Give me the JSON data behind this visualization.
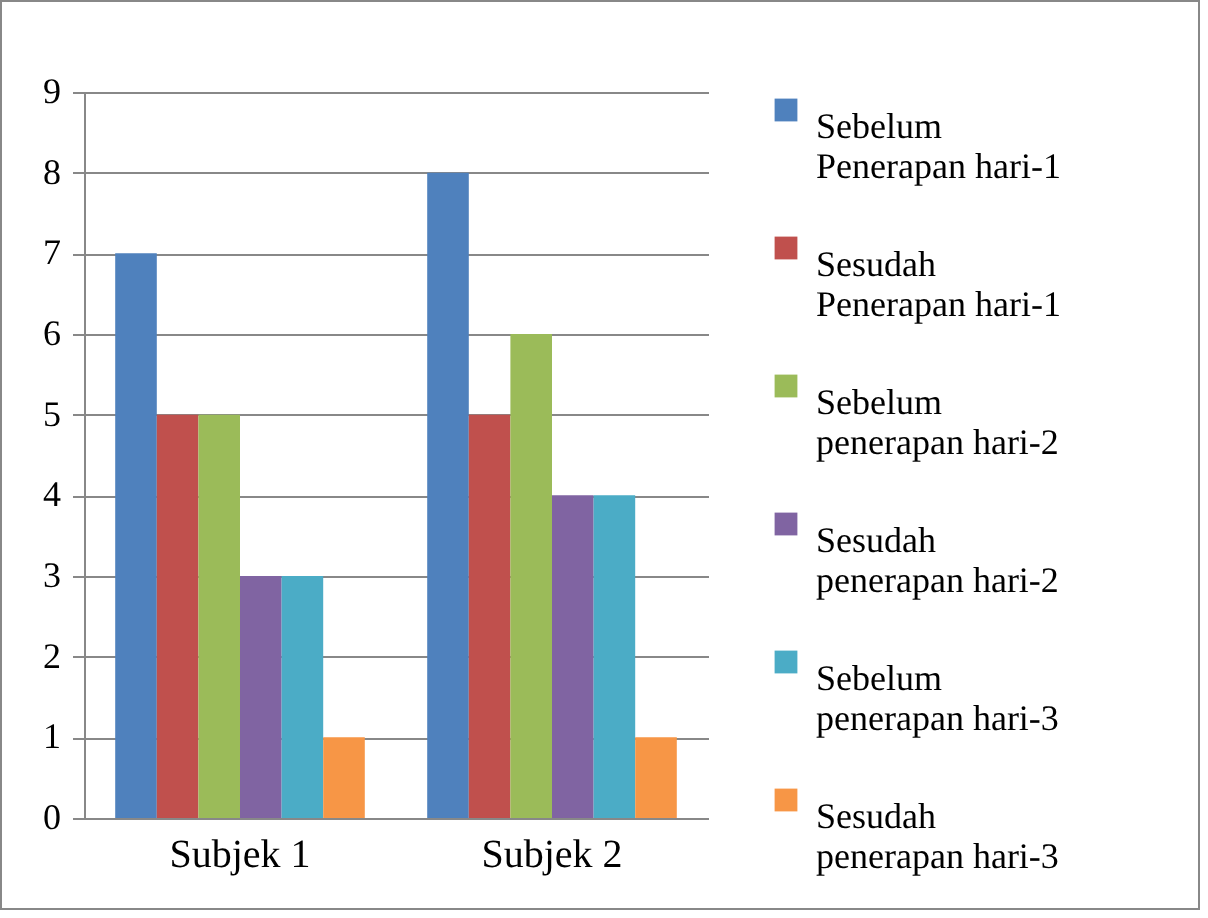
{
  "chart_data": {
    "type": "bar",
    "categories": [
      "Subjek 1",
      "Subjek 2"
    ],
    "series": [
      {
        "name": "Sebelum Penerapan hari-1",
        "color": "#4f81bd",
        "values": [
          7,
          8
        ]
      },
      {
        "name": "Sesudah Penerapan hari-1",
        "color": "#c0504d",
        "values": [
          5,
          5
        ]
      },
      {
        "name": "Sebelum penerapan hari-2",
        "color": "#9bbb59",
        "values": [
          5,
          6
        ]
      },
      {
        "name": "Sesudah penerapan hari-2",
        "color": "#8064a2",
        "values": [
          3,
          4
        ]
      },
      {
        "name": "Sebelum penerapan hari-3",
        "color": "#4bacc6",
        "values": [
          3,
          4
        ]
      },
      {
        "name": "Sesudah penerapan hari-3",
        "color": "#f79646",
        "values": [
          1,
          1
        ]
      }
    ],
    "ylim": [
      0,
      9
    ],
    "yticks": [
      0,
      1,
      2,
      3,
      4,
      5,
      6,
      7,
      8,
      9
    ],
    "grid": "y",
    "legend": "right"
  }
}
